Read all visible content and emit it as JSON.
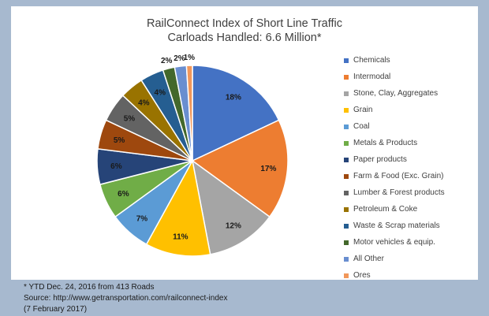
{
  "chart_data": {
    "type": "pie",
    "title": "RailConnect  Index of Short Line Traffic",
    "subtitle": "Carloads Handled: 6.6 Million*",
    "legend_position": "right",
    "slices": [
      {
        "label": "Chemicals",
        "value": 18,
        "display": "18%",
        "color": "#4472c4"
      },
      {
        "label": "Intermodal",
        "value": 17,
        "display": "17%",
        "color": "#ed7d31"
      },
      {
        "label": "Stone, Clay, Aggregates",
        "value": 12,
        "display": "12%",
        "color": "#a5a5a5"
      },
      {
        "label": "Grain",
        "value": 11,
        "display": "11%",
        "color": "#ffc000"
      },
      {
        "label": "Coal",
        "value": 7,
        "display": "7%",
        "color": "#5b9bd5"
      },
      {
        "label": "Metals & Products",
        "value": 6,
        "display": "6%",
        "color": "#70ad47"
      },
      {
        "label": "Paper products",
        "value": 6,
        "display": "6%",
        "color": "#264478"
      },
      {
        "label": "Farm & Food (Exc. Grain)",
        "value": 5,
        "display": "5%",
        "color": "#9e480e"
      },
      {
        "label": "Lumber & Forest products",
        "value": 5,
        "display": "5%",
        "color": "#636363"
      },
      {
        "label": "Petroleum & Coke",
        "value": 4,
        "display": "4%",
        "color": "#997300"
      },
      {
        "label": "Waste & Scrap materials",
        "value": 4,
        "display": "4%",
        "color": "#255e91"
      },
      {
        "label": "Motor vehicles & equip.",
        "value": 2,
        "display": "2%",
        "color": "#43682b"
      },
      {
        "label": "All Other",
        "value": 2,
        "display": "2%",
        "color": "#698ed0"
      },
      {
        "label": "Ores",
        "value": 1,
        "display": "1%",
        "color": "#f1975a"
      }
    ]
  },
  "footnotes": {
    "line1": "* YTD Dec. 24, 2016 from 413 Roads",
    "line2": "Source: http://www.getransportation.com/railconnect-index",
    "line3": "(7 February 2017)"
  }
}
